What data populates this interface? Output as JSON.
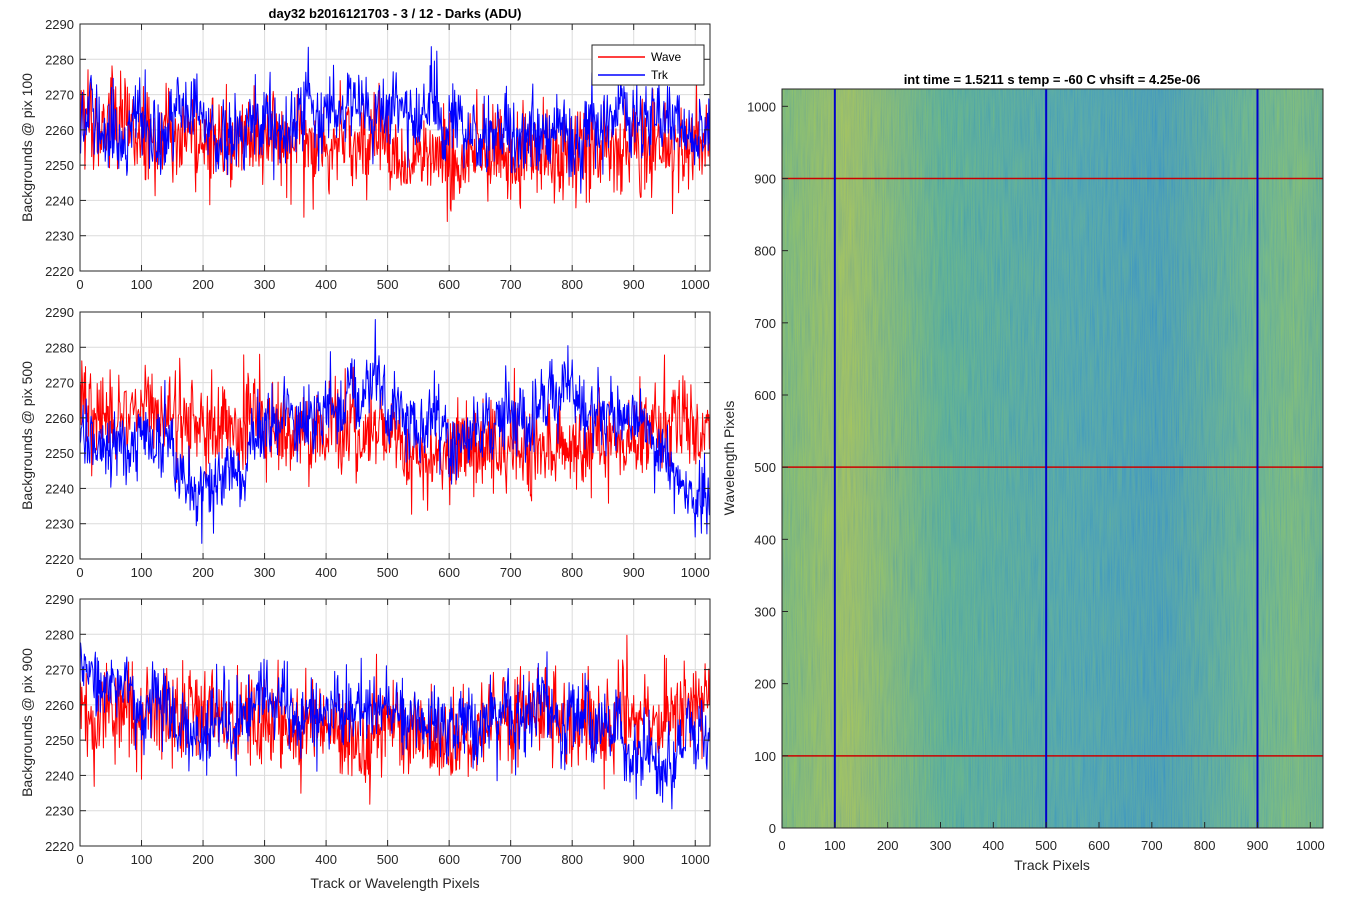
{
  "chart_data": [
    {
      "type": "line",
      "title": "day32 b2016121703 - 3 / 12 - Darks (ADU)",
      "xlabel": "",
      "ylabel": "Backgrounds @ pix 100",
      "xlim": [
        0,
        1024
      ],
      "ylim": [
        2220,
        2290
      ],
      "xticks": [
        0,
        100,
        200,
        300,
        400,
        500,
        600,
        700,
        800,
        900,
        1000
      ],
      "yticks": [
        2220,
        2230,
        2240,
        2250,
        2260,
        2270,
        2280,
        2290
      ],
      "grid": true,
      "legend": {
        "placement": "top-right",
        "entries": [
          "Wave",
          "Trk"
        ]
      },
      "series": [
        {
          "name": "Wave",
          "color": "#ff0000",
          "mean": 2257,
          "noise": 6.5,
          "wander": 2,
          "segments": [
            [
              0,
              2262
            ],
            [
              200,
              2258
            ],
            [
              400,
              2256
            ],
            [
              600,
              2252
            ],
            [
              800,
              2254
            ],
            [
              1024,
              2256
            ]
          ]
        },
        {
          "name": "Trk",
          "color": "#0000ff",
          "mean": 2262,
          "noise": 5.0,
          "wander": 3.5,
          "segments": [
            [
              0,
              2262
            ],
            [
              250,
              2258
            ],
            [
              450,
              2265
            ],
            [
              600,
              2262
            ],
            [
              750,
              2260
            ],
            [
              880,
              2268
            ],
            [
              1024,
              2258
            ]
          ]
        }
      ]
    },
    {
      "type": "line",
      "title": "",
      "xlabel": "",
      "ylabel": "Backgrounds @ pix 500",
      "xlim": [
        0,
        1024
      ],
      "ylim": [
        2220,
        2290
      ],
      "xticks": [
        0,
        100,
        200,
        300,
        400,
        500,
        600,
        700,
        800,
        900,
        1000
      ],
      "yticks": [
        2220,
        2230,
        2240,
        2250,
        2260,
        2270,
        2280,
        2290
      ],
      "grid": true,
      "series": [
        {
          "name": "Wave",
          "color": "#ff0000",
          "mean": 2257,
          "noise": 6.5,
          "wander": 2,
          "segments": [
            [
              0,
              2262
            ],
            [
              150,
              2262
            ],
            [
              300,
              2258
            ],
            [
              500,
              2254
            ],
            [
              650,
              2248
            ],
            [
              800,
              2252
            ],
            [
              1024,
              2260
            ]
          ]
        },
        {
          "name": "Trk",
          "color": "#0000ff",
          "mean": 2258,
          "noise": 5.0,
          "wander": 4,
          "segments": [
            [
              0,
              2258
            ],
            [
              180,
              2244
            ],
            [
              300,
              2258
            ],
            [
              460,
              2264
            ],
            [
              600,
              2258
            ],
            [
              850,
              2266
            ],
            [
              960,
              2245
            ],
            [
              1024,
              2242
            ]
          ]
        }
      ]
    },
    {
      "type": "line",
      "title": "",
      "xlabel": "Track or Wavelength Pixels",
      "ylabel": "Backgrounds @ pix 900",
      "xlim": [
        0,
        1024
      ],
      "ylim": [
        2220,
        2290
      ],
      "xticks": [
        0,
        100,
        200,
        300,
        400,
        500,
        600,
        700,
        800,
        900,
        1000
      ],
      "yticks": [
        2220,
        2230,
        2240,
        2250,
        2260,
        2270,
        2280,
        2290
      ],
      "grid": true,
      "series": [
        {
          "name": "Wave",
          "color": "#ff0000",
          "mean": 2257,
          "noise": 6.5,
          "wander": 2,
          "segments": [
            [
              0,
              2258
            ],
            [
              200,
              2256
            ],
            [
              400,
              2254
            ],
            [
              600,
              2250
            ],
            [
              800,
              2256
            ],
            [
              1024,
              2258
            ]
          ]
        },
        {
          "name": "Trk",
          "color": "#0000ff",
          "mean": 2258,
          "noise": 5.0,
          "wander": 3.5,
          "segments": [
            [
              0,
              2268
            ],
            [
              200,
              2252
            ],
            [
              300,
              2262
            ],
            [
              480,
              2258
            ],
            [
              650,
              2254
            ],
            [
              800,
              2260
            ],
            [
              950,
              2246
            ],
            [
              1024,
              2256
            ]
          ]
        }
      ]
    },
    {
      "type": "heatmap",
      "title": "int time = 1.5211 s    temp = -60 C    vhsift = 4.25e-06",
      "xlabel": "Track Pixels",
      "ylabel": "Wavelength Pixels",
      "xlim": [
        0,
        1024
      ],
      "ylim": [
        0,
        1024
      ],
      "xticks": [
        0,
        100,
        200,
        300,
        400,
        500,
        600,
        700,
        800,
        900,
        1000
      ],
      "yticks": [
        0,
        100,
        200,
        300,
        400,
        500,
        600,
        700,
        800,
        900,
        1000
      ],
      "colormap": "parula",
      "colors": {
        "low": "#1f8fd0",
        "mid": "#2aaf9c",
        "high": "#b8c53a"
      },
      "vlines": {
        "x": [
          100,
          500,
          900
        ],
        "color": "#0000cc"
      },
      "hlines": {
        "y": [
          100,
          500,
          900
        ],
        "color": "#cc0000"
      }
    }
  ]
}
